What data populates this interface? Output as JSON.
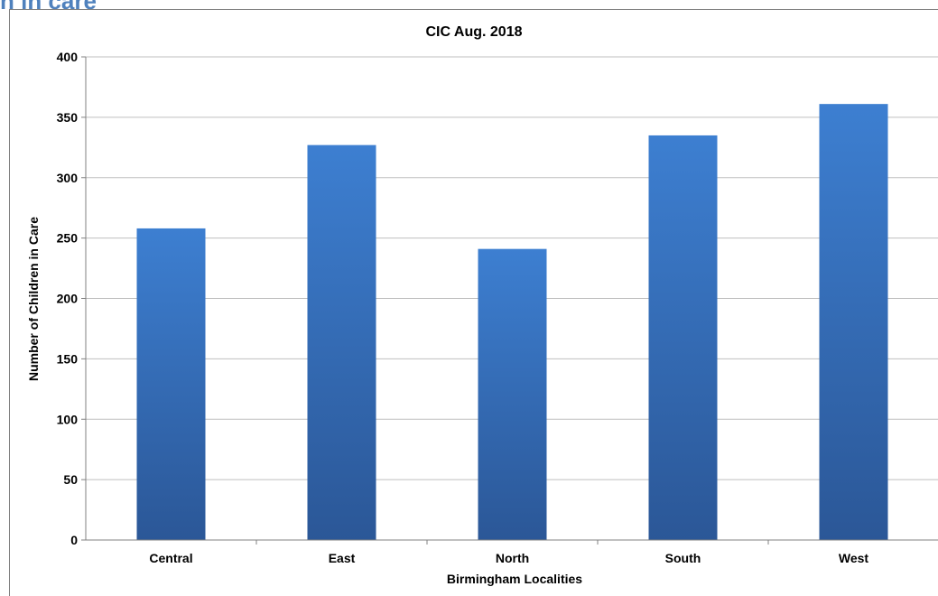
{
  "page": {
    "heading": "n in care"
  },
  "chart_data": {
    "type": "bar",
    "title": "CIC Aug. 2018",
    "xlabel": "Birmingham Localities",
    "ylabel": "Number of Children in Care",
    "categories": [
      "Central",
      "East",
      "North",
      "South",
      "West"
    ],
    "values": [
      258,
      327,
      241,
      335,
      361
    ],
    "ylim": [
      0,
      400
    ],
    "yticks": [
      0,
      50,
      100,
      150,
      200,
      250,
      300,
      350,
      400
    ],
    "grid": true,
    "legend": "none",
    "colors": {
      "bar_top": "#3d7fd1",
      "bar_bottom": "#2b5797",
      "heading": "#4f81bd"
    }
  }
}
